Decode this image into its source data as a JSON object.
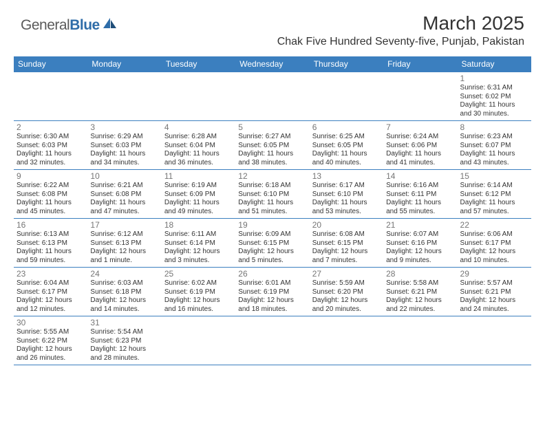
{
  "brand": {
    "part1": "General",
    "part2": "Blue"
  },
  "colors": {
    "header_bg": "#3b7fbf",
    "header_text": "#ffffff",
    "row_border": "#3b7fbf",
    "daynum_color": "#757575",
    "body_text": "#333333",
    "logo_gray": "#5a5a5a",
    "logo_blue": "#2e6ca8",
    "bg": "#ffffff"
  },
  "title": "March 2025",
  "location": "Chak Five Hundred Seventy-five, Punjab, Pakistan",
  "day_headers": [
    "Sunday",
    "Monday",
    "Tuesday",
    "Wednesday",
    "Thursday",
    "Friday",
    "Saturday"
  ],
  "weeks": [
    [
      null,
      null,
      null,
      null,
      null,
      null,
      {
        "n": "1",
        "sr": "Sunrise: 6:31 AM",
        "ss": "Sunset: 6:02 PM",
        "d1": "Daylight: 11 hours",
        "d2": "and 30 minutes."
      }
    ],
    [
      {
        "n": "2",
        "sr": "Sunrise: 6:30 AM",
        "ss": "Sunset: 6:03 PM",
        "d1": "Daylight: 11 hours",
        "d2": "and 32 minutes."
      },
      {
        "n": "3",
        "sr": "Sunrise: 6:29 AM",
        "ss": "Sunset: 6:03 PM",
        "d1": "Daylight: 11 hours",
        "d2": "and 34 minutes."
      },
      {
        "n": "4",
        "sr": "Sunrise: 6:28 AM",
        "ss": "Sunset: 6:04 PM",
        "d1": "Daylight: 11 hours",
        "d2": "and 36 minutes."
      },
      {
        "n": "5",
        "sr": "Sunrise: 6:27 AM",
        "ss": "Sunset: 6:05 PM",
        "d1": "Daylight: 11 hours",
        "d2": "and 38 minutes."
      },
      {
        "n": "6",
        "sr": "Sunrise: 6:25 AM",
        "ss": "Sunset: 6:05 PM",
        "d1": "Daylight: 11 hours",
        "d2": "and 40 minutes."
      },
      {
        "n": "7",
        "sr": "Sunrise: 6:24 AM",
        "ss": "Sunset: 6:06 PM",
        "d1": "Daylight: 11 hours",
        "d2": "and 41 minutes."
      },
      {
        "n": "8",
        "sr": "Sunrise: 6:23 AM",
        "ss": "Sunset: 6:07 PM",
        "d1": "Daylight: 11 hours",
        "d2": "and 43 minutes."
      }
    ],
    [
      {
        "n": "9",
        "sr": "Sunrise: 6:22 AM",
        "ss": "Sunset: 6:08 PM",
        "d1": "Daylight: 11 hours",
        "d2": "and 45 minutes."
      },
      {
        "n": "10",
        "sr": "Sunrise: 6:21 AM",
        "ss": "Sunset: 6:08 PM",
        "d1": "Daylight: 11 hours",
        "d2": "and 47 minutes."
      },
      {
        "n": "11",
        "sr": "Sunrise: 6:19 AM",
        "ss": "Sunset: 6:09 PM",
        "d1": "Daylight: 11 hours",
        "d2": "and 49 minutes."
      },
      {
        "n": "12",
        "sr": "Sunrise: 6:18 AM",
        "ss": "Sunset: 6:10 PM",
        "d1": "Daylight: 11 hours",
        "d2": "and 51 minutes."
      },
      {
        "n": "13",
        "sr": "Sunrise: 6:17 AM",
        "ss": "Sunset: 6:10 PM",
        "d1": "Daylight: 11 hours",
        "d2": "and 53 minutes."
      },
      {
        "n": "14",
        "sr": "Sunrise: 6:16 AM",
        "ss": "Sunset: 6:11 PM",
        "d1": "Daylight: 11 hours",
        "d2": "and 55 minutes."
      },
      {
        "n": "15",
        "sr": "Sunrise: 6:14 AM",
        "ss": "Sunset: 6:12 PM",
        "d1": "Daylight: 11 hours",
        "d2": "and 57 minutes."
      }
    ],
    [
      {
        "n": "16",
        "sr": "Sunrise: 6:13 AM",
        "ss": "Sunset: 6:13 PM",
        "d1": "Daylight: 11 hours",
        "d2": "and 59 minutes."
      },
      {
        "n": "17",
        "sr": "Sunrise: 6:12 AM",
        "ss": "Sunset: 6:13 PM",
        "d1": "Daylight: 12 hours",
        "d2": "and 1 minute."
      },
      {
        "n": "18",
        "sr": "Sunrise: 6:11 AM",
        "ss": "Sunset: 6:14 PM",
        "d1": "Daylight: 12 hours",
        "d2": "and 3 minutes."
      },
      {
        "n": "19",
        "sr": "Sunrise: 6:09 AM",
        "ss": "Sunset: 6:15 PM",
        "d1": "Daylight: 12 hours",
        "d2": "and 5 minutes."
      },
      {
        "n": "20",
        "sr": "Sunrise: 6:08 AM",
        "ss": "Sunset: 6:15 PM",
        "d1": "Daylight: 12 hours",
        "d2": "and 7 minutes."
      },
      {
        "n": "21",
        "sr": "Sunrise: 6:07 AM",
        "ss": "Sunset: 6:16 PM",
        "d1": "Daylight: 12 hours",
        "d2": "and 9 minutes."
      },
      {
        "n": "22",
        "sr": "Sunrise: 6:06 AM",
        "ss": "Sunset: 6:17 PM",
        "d1": "Daylight: 12 hours",
        "d2": "and 10 minutes."
      }
    ],
    [
      {
        "n": "23",
        "sr": "Sunrise: 6:04 AM",
        "ss": "Sunset: 6:17 PM",
        "d1": "Daylight: 12 hours",
        "d2": "and 12 minutes."
      },
      {
        "n": "24",
        "sr": "Sunrise: 6:03 AM",
        "ss": "Sunset: 6:18 PM",
        "d1": "Daylight: 12 hours",
        "d2": "and 14 minutes."
      },
      {
        "n": "25",
        "sr": "Sunrise: 6:02 AM",
        "ss": "Sunset: 6:19 PM",
        "d1": "Daylight: 12 hours",
        "d2": "and 16 minutes."
      },
      {
        "n": "26",
        "sr": "Sunrise: 6:01 AM",
        "ss": "Sunset: 6:19 PM",
        "d1": "Daylight: 12 hours",
        "d2": "and 18 minutes."
      },
      {
        "n": "27",
        "sr": "Sunrise: 5:59 AM",
        "ss": "Sunset: 6:20 PM",
        "d1": "Daylight: 12 hours",
        "d2": "and 20 minutes."
      },
      {
        "n": "28",
        "sr": "Sunrise: 5:58 AM",
        "ss": "Sunset: 6:21 PM",
        "d1": "Daylight: 12 hours",
        "d2": "and 22 minutes."
      },
      {
        "n": "29",
        "sr": "Sunrise: 5:57 AM",
        "ss": "Sunset: 6:21 PM",
        "d1": "Daylight: 12 hours",
        "d2": "and 24 minutes."
      }
    ],
    [
      {
        "n": "30",
        "sr": "Sunrise: 5:55 AM",
        "ss": "Sunset: 6:22 PM",
        "d1": "Daylight: 12 hours",
        "d2": "and 26 minutes."
      },
      {
        "n": "31",
        "sr": "Sunrise: 5:54 AM",
        "ss": "Sunset: 6:23 PM",
        "d1": "Daylight: 12 hours",
        "d2": "and 28 minutes."
      },
      null,
      null,
      null,
      null,
      null
    ]
  ]
}
